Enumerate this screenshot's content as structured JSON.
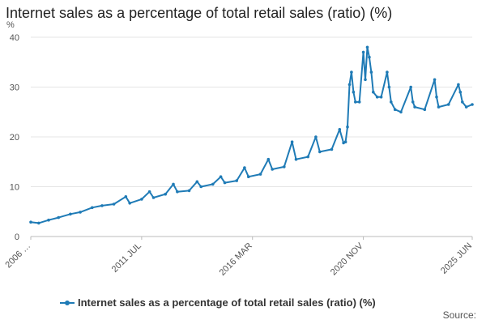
{
  "chart_data": {
    "type": "line",
    "title": "Internet sales as a percentage of total retail sales (ratio) (%)",
    "y_unit": "%",
    "ylim": [
      0,
      40
    ],
    "y_ticks": [
      0,
      10,
      20,
      30,
      40
    ],
    "grid": true,
    "legend_position": "bottom",
    "x_tick_labels": [
      "2006 …",
      "2011 JUL",
      "2016 MAR",
      "2020 NOV",
      "2025 JUN"
    ],
    "series": [
      {
        "name": "Internet sales as a percentage of total retail sales (ratio) (%)",
        "color": "#1f7bb6",
        "x": [
          "2006 Nov",
          "2007 Mar",
          "2007 Aug",
          "2008 Jan",
          "2008 Jul",
          "2008 Dec",
          "2009 Jun",
          "2009 Nov",
          "2010 May",
          "2010 Nov",
          "2011 Jan",
          "2011 Jul",
          "2011 Nov",
          "2012 Jan",
          "2012 Jul",
          "2012 Nov",
          "2013 Jan",
          "2013 Jul",
          "2013 Nov",
          "2014 Jan",
          "2014 Jul",
          "2014 Nov",
          "2015 Jan",
          "2015 Jul",
          "2015 Nov",
          "2016 Jan",
          "2016 Jul",
          "2016 Nov",
          "2017 Jan",
          "2017 Jul",
          "2017 Nov",
          "2018 Jan",
          "2018 Jul",
          "2018 Nov",
          "2019 Jan",
          "2019 Jul",
          "2019 Nov",
          "2020 Jan",
          "2020 Feb",
          "2020 Mar",
          "2020 Apr",
          "2020 May",
          "2020 Jun",
          "2020 Jul",
          "2020 Sep",
          "2020 Nov",
          "2020 Dec",
          "2021 Jan",
          "2021 Feb",
          "2021 Mar",
          "2021 Apr",
          "2021 Jun",
          "2021 Aug",
          "2021 Nov",
          "2021 Dec",
          "2022 Jan",
          "2022 Mar",
          "2022 Jun",
          "2022 Nov",
          "2022 Dec",
          "2023 Jan",
          "2023 Jun",
          "2023 Nov",
          "2023 Dec",
          "2024 Jan",
          "2024 Jun",
          "2024 Nov",
          "2024 Dec",
          "2025 Jan",
          "2025 Mar",
          "2025 Jun"
        ],
        "values": [
          2.9,
          2.7,
          3.3,
          3.8,
          4.5,
          4.9,
          5.8,
          6.2,
          6.5,
          8.0,
          6.7,
          7.5,
          9.0,
          7.8,
          8.5,
          10.5,
          9.0,
          9.2,
          11.0,
          10.0,
          10.5,
          12.0,
          10.8,
          11.2,
          13.8,
          12.0,
          12.5,
          15.5,
          13.5,
          14.0,
          19.0,
          15.5,
          16.0,
          20.0,
          17.0,
          17.5,
          21.5,
          18.8,
          19.0,
          22.0,
          30.5,
          33.0,
          29.0,
          27.0,
          27.0,
          37.0,
          31.5,
          38.0,
          36.0,
          33.0,
          29.0,
          28.0,
          28.0,
          33.0,
          30.0,
          27.0,
          25.5,
          25.0,
          30.0,
          27.0,
          26.0,
          25.5,
          31.5,
          28.0,
          26.0,
          26.5,
          30.5,
          29.0,
          27.0,
          26.0,
          26.5
        ]
      }
    ]
  },
  "legend_label": "Internet sales as a percentage of total retail sales (ratio) (%)",
  "source_label": "Source:"
}
